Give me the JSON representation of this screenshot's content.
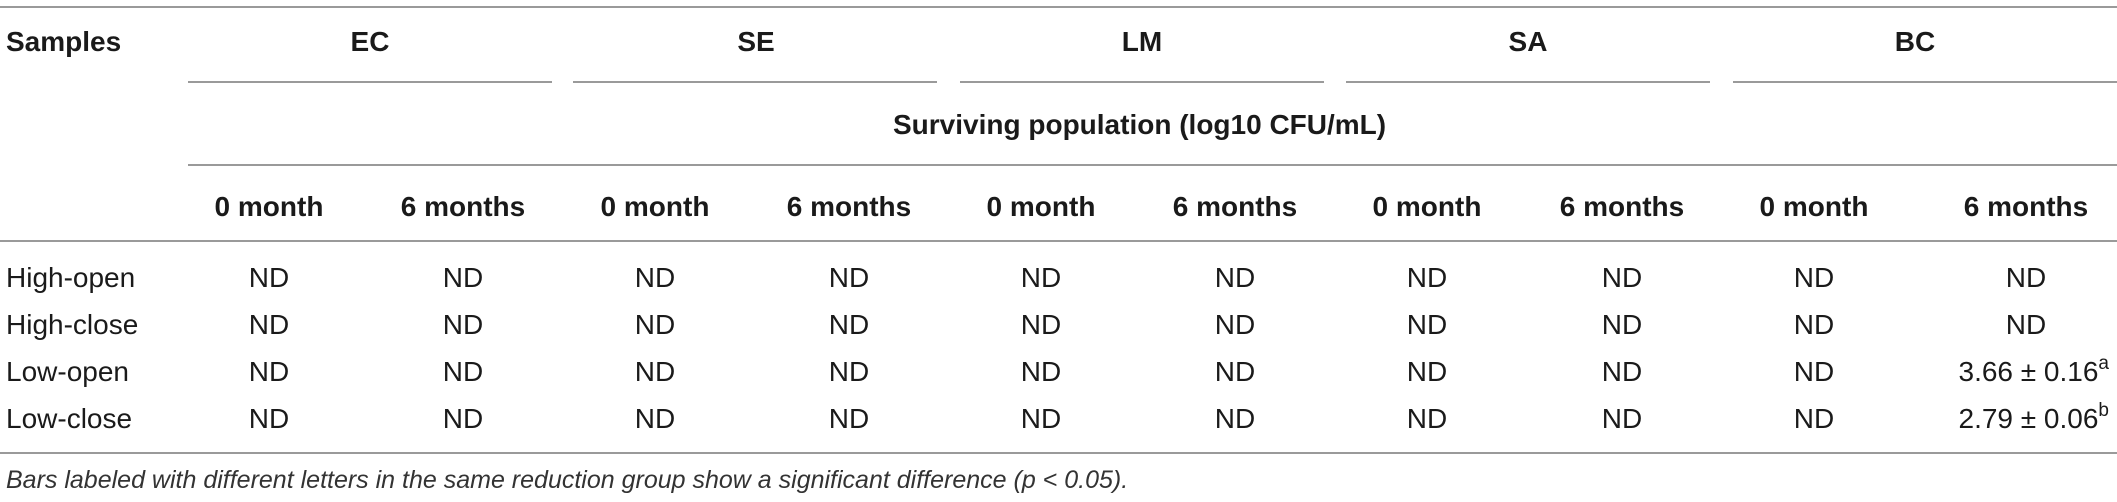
{
  "table": {
    "samples_label": "Samples",
    "groups": [
      "EC",
      "SE",
      "LM",
      "SA",
      "BC"
    ],
    "span_label": "Surviving population (log10 CFU/mL)",
    "time_labels": [
      "0 month",
      "6 months",
      "0 month",
      "6 months",
      "0 month",
      "6 months",
      "0 month",
      "6 months",
      "0 month",
      "6 months"
    ],
    "rows": [
      {
        "label": "High-open",
        "cells": [
          "ND",
          "ND",
          "ND",
          "ND",
          "ND",
          "ND",
          "ND",
          "ND",
          "ND",
          "ND"
        ]
      },
      {
        "label": "High-close",
        "cells": [
          "ND",
          "ND",
          "ND",
          "ND",
          "ND",
          "ND",
          "ND",
          "ND",
          "ND",
          "ND"
        ]
      },
      {
        "label": "Low-open",
        "cells": [
          "ND",
          "ND",
          "ND",
          "ND",
          "ND",
          "ND",
          "ND",
          "ND",
          "ND"
        ],
        "last_value": "3.66 ± 0.16",
        "last_sup": "a"
      },
      {
        "label": "Low-close",
        "cells": [
          "ND",
          "ND",
          "ND",
          "ND",
          "ND",
          "ND",
          "ND",
          "ND",
          "ND"
        ],
        "last_value": "2.79 ± 0.06",
        "last_sup": "b"
      }
    ],
    "footnote": "Bars labeled with different letters in the same reduction group show a significant difference (p < 0.05)."
  }
}
